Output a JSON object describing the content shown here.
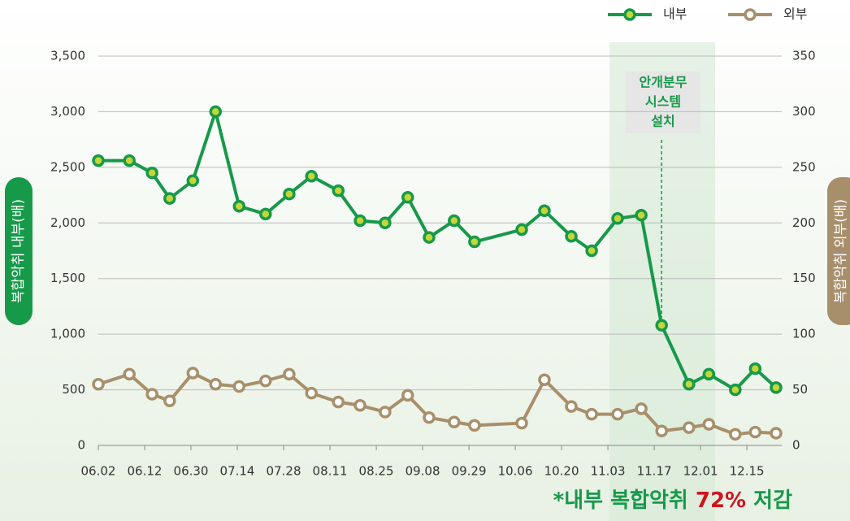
{
  "chart_data": {
    "type": "line",
    "x": [
      0,
      0.67,
      1.16,
      1.54,
      2.04,
      2.53,
      3.04,
      3.61,
      4.12,
      4.6,
      5.18,
      5.65,
      6.19,
      6.68,
      7.14,
      7.68,
      8.12,
      9.14,
      9.63,
      10.21,
      10.65,
      11.21,
      11.72,
      12.16,
      12.75,
      13.18,
      13.75,
      14.18,
      14.63
    ],
    "xlim": [
      0,
      14.63
    ],
    "xticks": [
      {
        "value": 0,
        "label": "06.02"
      },
      {
        "value": 1,
        "label": "06.12"
      },
      {
        "value": 2,
        "label": "06.30"
      },
      {
        "value": 3,
        "label": "07.14"
      },
      {
        "value": 4,
        "label": "07.28"
      },
      {
        "value": 5,
        "label": "08.11"
      },
      {
        "value": 6,
        "label": "08.25"
      },
      {
        "value": 7,
        "label": "09.08"
      },
      {
        "value": 8,
        "label": "09.29"
      },
      {
        "value": 9,
        "label": "10.06"
      },
      {
        "value": 10,
        "label": "10.20"
      },
      {
        "value": 11,
        "label": "11.03"
      },
      {
        "value": 12,
        "label": "11.17"
      },
      {
        "value": 13,
        "label": "12.01"
      },
      {
        "value": 14,
        "label": "12.15"
      }
    ],
    "ylim": [
      0,
      3500
    ],
    "yticks": [
      0,
      500,
      {
        "value": 1000,
        "label": "1,000"
      },
      {
        "value": 1500,
        "label": "1,500"
      },
      {
        "value": 2000,
        "label": "2,000"
      },
      {
        "value": 2500,
        "label": "2,500"
      },
      {
        "value": 3000,
        "label": "3,000"
      },
      {
        "value": 3500,
        "label": "3,500"
      }
    ],
    "y2lim": [
      0,
      350
    ],
    "y2ticks": [
      0,
      50,
      100,
      150,
      200,
      250,
      300,
      350
    ],
    "ylabel": "복합악취 내부(배)",
    "y2label": "복합악취 외부(배)",
    "grid": true,
    "legend": "top-right",
    "series": [
      {
        "name": "내부",
        "color": "#17994a",
        "marker_color": "#c5d637",
        "values": [
          2560,
          2560,
          2450,
          2220,
          2380,
          3000,
          2150,
          2080,
          2260,
          2420,
          2290,
          2020,
          2000,
          2230,
          1870,
          2020,
          1830,
          1940,
          2110,
          1880,
          1750,
          2040,
          2070,
          1080,
          550,
          640,
          500,
          690,
          520
        ]
      },
      {
        "name": "외부",
        "color": "#a88f6b",
        "marker_color": "#ffffff",
        "axis": "y2",
        "values": [
          55,
          64,
          46,
          40,
          65,
          55,
          53,
          58,
          64,
          47,
          39,
          36,
          30,
          45,
          25,
          21,
          18,
          20,
          59,
          35,
          28,
          28,
          33,
          13,
          16,
          19,
          10,
          12,
          11
        ]
      }
    ],
    "annotation": [
      "안개분무",
      "시스템",
      "설치"
    ],
    "note": [
      "*내부 복합악취 ",
      "72%",
      " 저감"
    ]
  }
}
